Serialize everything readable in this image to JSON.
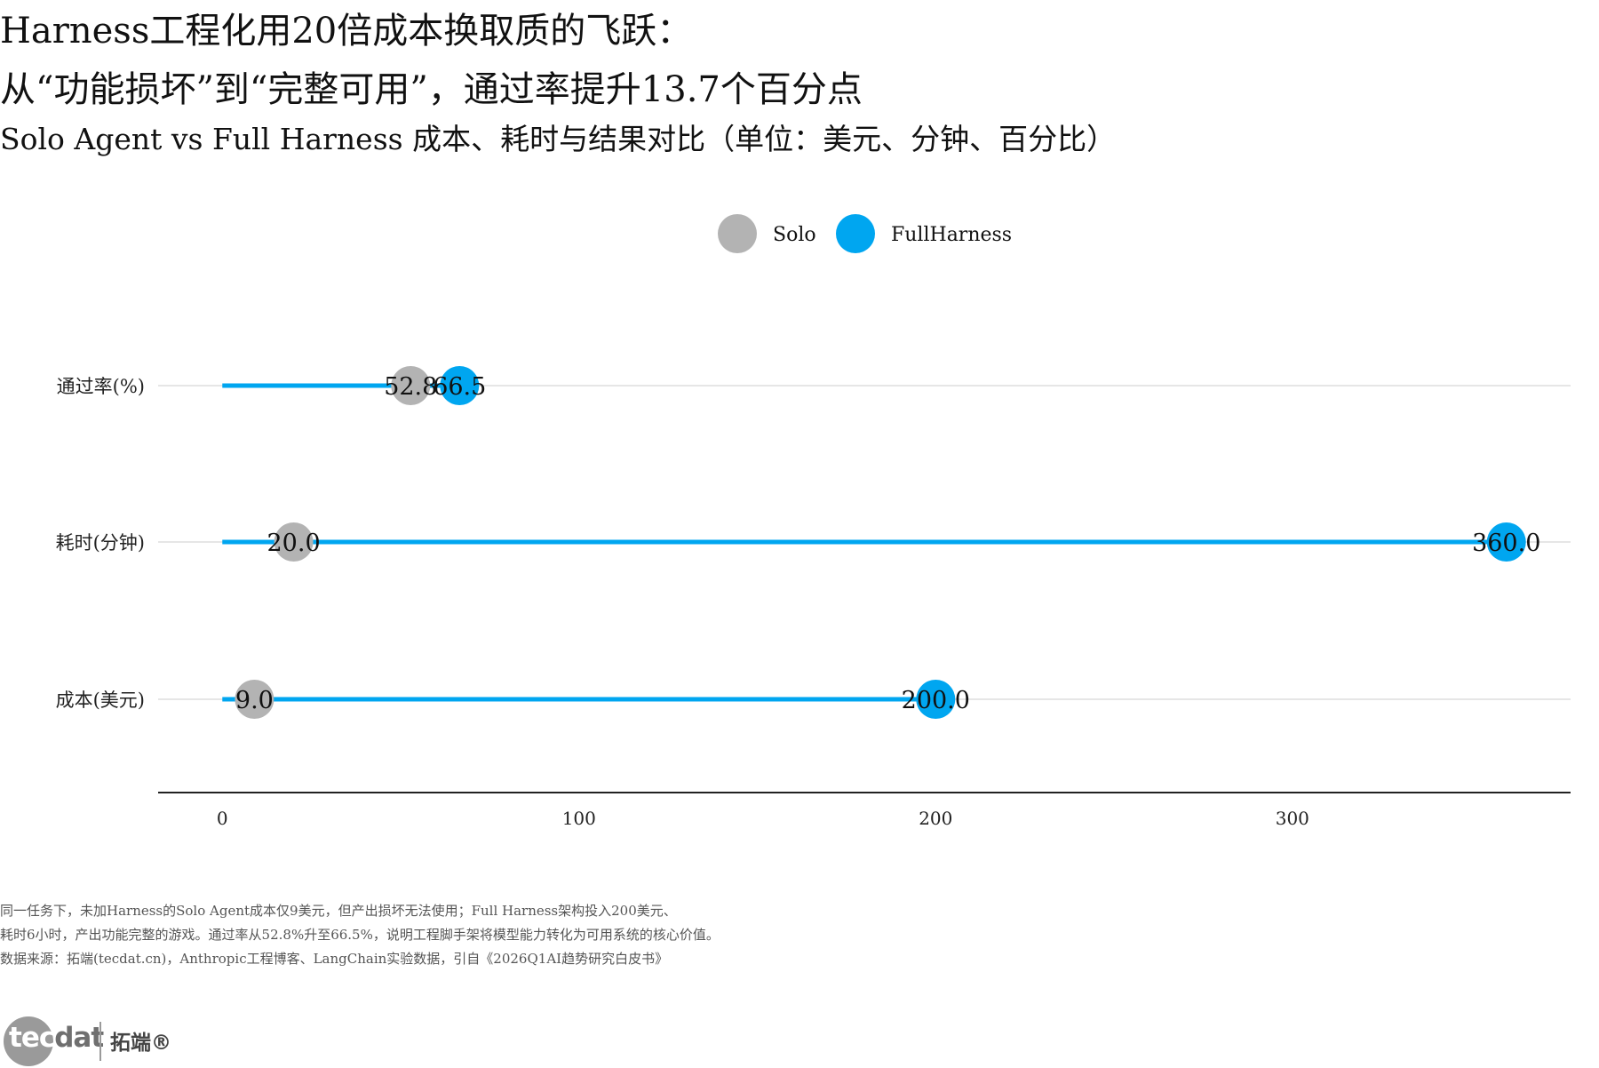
{
  "header": {
    "title_line1": "Harness工程化用20倍成本换取质的飞跃：",
    "title_line2": "从“功能损坏”到“完整可用”，通过率提升13.7个百分点",
    "subtitle": "Solo Agent vs Full Harness 成本、耗时与结果对比（单位：美元、分钟、百分比）"
  },
  "colors": {
    "solo": "#b3b3b3",
    "full_harness": "#00a6f0",
    "grid": "#e6e6e6",
    "axis": "#222222"
  },
  "chart_data": {
    "type": "dumbbell",
    "orientation": "horizontal",
    "categories": [
      "通过率(%)",
      "耗时(分钟)",
      "成本(美元)"
    ],
    "series": [
      {
        "name": "Solo",
        "values": [
          52.8,
          20.0,
          9.0
        ]
      },
      {
        "name": "FullHarness",
        "values": [
          66.5,
          360.0,
          200.0
        ]
      }
    ],
    "data_labels": {
      "Solo": [
        "52.8",
        "20.0",
        "9.0"
      ],
      "FullHarness": [
        "66.5",
        "360.0",
        "200.0"
      ]
    },
    "x_ticks": [
      0,
      100,
      200,
      300
    ],
    "x_tick_labels": [
      "0",
      "100",
      "200",
      "300"
    ],
    "xlim": [
      -18,
      378
    ],
    "segment_from": 0,
    "legend_position": "top-center",
    "grid": "horizontal major lines per category",
    "xlabel": "",
    "ylabel": ""
  },
  "notes": {
    "line1": "同一任务下，未加Harness的Solo Agent成本仅9美元，但产出损坏无法使用；Full Harness架构投入200美元、",
    "line2": "耗时6小时，产出功能完整的游戏。通过率从52.8%升至66.5%，说明工程脚手架将模型能力转化为可用系统的核心价值。",
    "line3": "数据来源：拓端(tecdat.cn)，Anthropic工程博客、LangChain实验数据，引自《2026Q1AI趋势研究白皮书》"
  },
  "logo": {
    "word_main": "tec",
    "word_tail": "dat",
    "cn": "拓端®"
  }
}
